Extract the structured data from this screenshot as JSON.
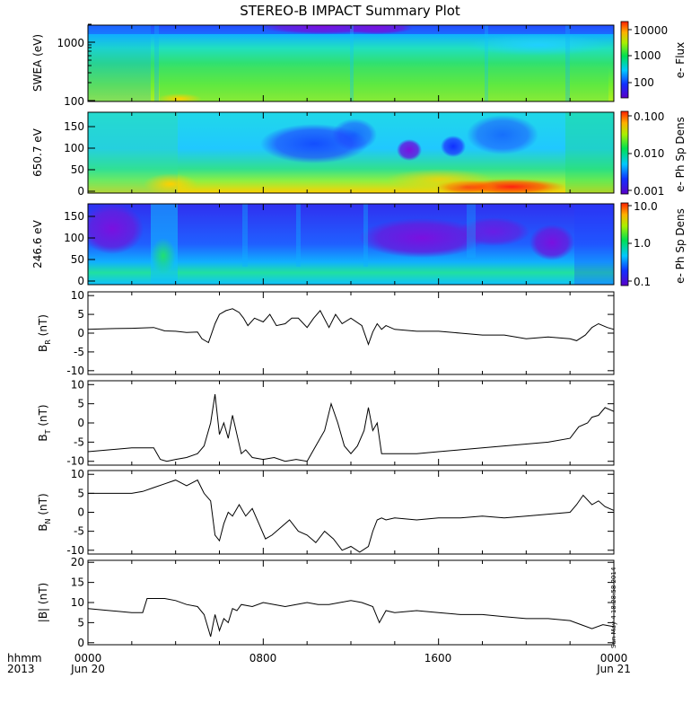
{
  "chart_data": {
    "type": "summary-plot",
    "title": "STEREO-B IMPACT Summary Plot",
    "x_time_labels": [
      "0000",
      "0800",
      "1600",
      "0000"
    ],
    "x_date_labels": [
      "Jun 20",
      "Jun 21"
    ],
    "x_axis_label": "hhmm",
    "x_year_label": "2013",
    "x_range_hours": [
      0,
      24
    ],
    "stamp": "Sun May  4 18:28:58 2014",
    "panels": [
      {
        "id": "swea",
        "type": "heatmap",
        "ylabel": "SWEA (eV)",
        "y_scale": "log",
        "y_ticks": [
          "100",
          "1000"
        ],
        "colorbar_label": "e- Flux",
        "colorbar_ticks": [
          "100",
          "1000",
          "10000"
        ]
      },
      {
        "id": "pad650",
        "type": "heatmap",
        "ylabel": "650.7 eV",
        "y_range": [
          0,
          180
        ],
        "y_ticks": [
          "0",
          "50",
          "100",
          "150"
        ],
        "colorbar_label": "e- Ph Sp Dens",
        "colorbar_ticks": [
          "0.001",
          "0.010",
          "0.100"
        ]
      },
      {
        "id": "pad246",
        "type": "heatmap",
        "ylabel": "246.6 eV",
        "y_range": [
          0,
          180
        ],
        "y_ticks": [
          "0",
          "50",
          "100",
          "150"
        ],
        "colorbar_label": "e- Ph Sp Dens",
        "colorbar_ticks": [
          "0.1",
          "1.0",
          "10.0"
        ]
      },
      {
        "id": "br",
        "type": "line",
        "ylabel": "BR (nT)",
        "ylabel_main": "B",
        "ylabel_sub": "R",
        "ylabel_unit": " (nT)",
        "ylim": [
          -11,
          11
        ],
        "y_ticks": [
          -10,
          -5,
          0,
          5,
          10
        ],
        "x": [
          0,
          1,
          2,
          3,
          3.5,
          4,
          4.5,
          5,
          5.2,
          5.5,
          5.8,
          6,
          6.3,
          6.6,
          6.9,
          7.1,
          7.3,
          7.6,
          8,
          8.3,
          8.6,
          9,
          9.3,
          9.6,
          10,
          10.3,
          10.6,
          11,
          11.3,
          11.6,
          12,
          12.5,
          12.8,
          13,
          13.2,
          13.4,
          13.6,
          14,
          15,
          16,
          17,
          18,
          19,
          20,
          21,
          22,
          22.3,
          22.7,
          23,
          23.3,
          23.7,
          24
        ],
        "y": [
          1,
          1.2,
          1.3,
          1.5,
          0.6,
          0.5,
          0.2,
          0.3,
          -1.5,
          -2.5,
          2.5,
          5,
          6,
          6.5,
          5.5,
          4,
          2,
          4,
          3,
          5,
          2,
          2.5,
          4,
          4,
          1.5,
          4,
          6,
          1.5,
          5,
          2.5,
          4,
          2,
          -3,
          0.3,
          2.5,
          1,
          2,
          1,
          0.5,
          0.5,
          0,
          -0.5,
          -0.5,
          -1.5,
          -1,
          -1.5,
          -2,
          -0.5,
          1.5,
          2.5,
          1.5,
          1
        ]
      },
      {
        "id": "bt",
        "type": "line",
        "ylabel": "BT (nT)",
        "ylabel_main": "B",
        "ylabel_sub": "T",
        "ylabel_unit": " (nT)",
        "ylim": [
          -11,
          11
        ],
        "y_ticks": [
          -10,
          -5,
          0,
          5,
          10
        ],
        "x": [
          0,
          1,
          2,
          2.5,
          3,
          3.3,
          3.6,
          4,
          4.5,
          5,
          5.3,
          5.6,
          5.8,
          6,
          6.2,
          6.4,
          6.6,
          6.8,
          7,
          7.2,
          7.5,
          8,
          8.5,
          9,
          9.5,
          10,
          10.4,
          10.8,
          11.1,
          11.4,
          11.7,
          12,
          12.3,
          12.6,
          12.8,
          13,
          13.2,
          13.4,
          13.6,
          14,
          15,
          16,
          17,
          18,
          19,
          20,
          21,
          22,
          22.4,
          22.8,
          23,
          23.3,
          23.6,
          24
        ],
        "y": [
          -7.5,
          -7,
          -6.5,
          -6.5,
          -6.5,
          -9.5,
          -10,
          -9.5,
          -9,
          -8,
          -6,
          0,
          7.5,
          -3,
          0,
          -4,
          2,
          -3,
          -8,
          -7,
          -9,
          -9.5,
          -9,
          -10,
          -9.5,
          -10,
          -6,
          -2,
          5,
          0,
          -6,
          -8,
          -6,
          -2,
          4,
          -2,
          0,
          -8,
          -8,
          -8,
          -8,
          -7.5,
          -7,
          -6.5,
          -6,
          -5.5,
          -5,
          -4,
          -1,
          0,
          1.5,
          2,
          4,
          3
        ]
      },
      {
        "id": "bn",
        "type": "line",
        "ylabel": "BN (nT)",
        "ylabel_main": "B",
        "ylabel_sub": "N",
        "ylabel_unit": " (nT)",
        "ylim": [
          -11,
          11
        ],
        "y_ticks": [
          -10,
          -5,
          0,
          5,
          10
        ],
        "x": [
          0,
          1,
          2,
          2.5,
          3,
          3.5,
          4,
          4.5,
          5,
          5.3,
          5.6,
          5.8,
          6,
          6.2,
          6.4,
          6.6,
          6.9,
          7.2,
          7.5,
          7.8,
          8.1,
          8.4,
          8.8,
          9.2,
          9.6,
          10,
          10.4,
          10.8,
          11.2,
          11.6,
          12,
          12.4,
          12.8,
          13,
          13.2,
          13.4,
          13.6,
          14,
          15,
          16,
          17,
          18,
          19,
          20,
          21,
          22,
          22.3,
          22.6,
          23,
          23.3,
          23.6,
          24
        ],
        "y": [
          5,
          5,
          5,
          5.5,
          6.5,
          7.5,
          8.5,
          7,
          8.5,
          5,
          3,
          -6,
          -7.5,
          -3,
          0,
          -1,
          2,
          -1,
          1,
          -3,
          -7,
          -6,
          -4,
          -2,
          -5,
          -6,
          -8,
          -5,
          -7,
          -10,
          -9,
          -10.5,
          -9,
          -5,
          -2,
          -1.5,
          -2,
          -1.5,
          -2,
          -1.5,
          -1.5,
          -1,
          -1.5,
          -1,
          -0.5,
          0,
          2,
          4.5,
          2,
          3,
          1.5,
          0.5
        ]
      },
      {
        "id": "babs",
        "type": "line",
        "ylabel": "|B| (nT)",
        "ylim": [
          -0.5,
          20.5
        ],
        "y_ticks": [
          0,
          5,
          10,
          15,
          20
        ],
        "x": [
          0,
          1,
          2,
          2.5,
          2.7,
          3,
          3.5,
          4,
          4.5,
          5,
          5.3,
          5.6,
          5.8,
          6,
          6.2,
          6.4,
          6.6,
          6.8,
          7,
          7.5,
          8,
          8.5,
          9,
          9.5,
          10,
          10.5,
          11,
          11.5,
          12,
          12.5,
          13,
          13.3,
          13.6,
          14,
          15,
          16,
          17,
          18,
          19,
          20,
          21,
          22,
          22.5,
          23,
          23.5,
          24
        ],
        "y": [
          8.5,
          8,
          7.5,
          7.5,
          11,
          11,
          11,
          10.5,
          9.5,
          9,
          7,
          1.5,
          7,
          3,
          6,
          5,
          8.5,
          8,
          9.5,
          9,
          10,
          9.5,
          9,
          9.5,
          10,
          9.5,
          9.5,
          10,
          10.5,
          10,
          9,
          5,
          8,
          7.5,
          8,
          7.5,
          7,
          7,
          6.5,
          6,
          6,
          5.5,
          4.5,
          3.5,
          4.5,
          4
        ]
      }
    ]
  }
}
